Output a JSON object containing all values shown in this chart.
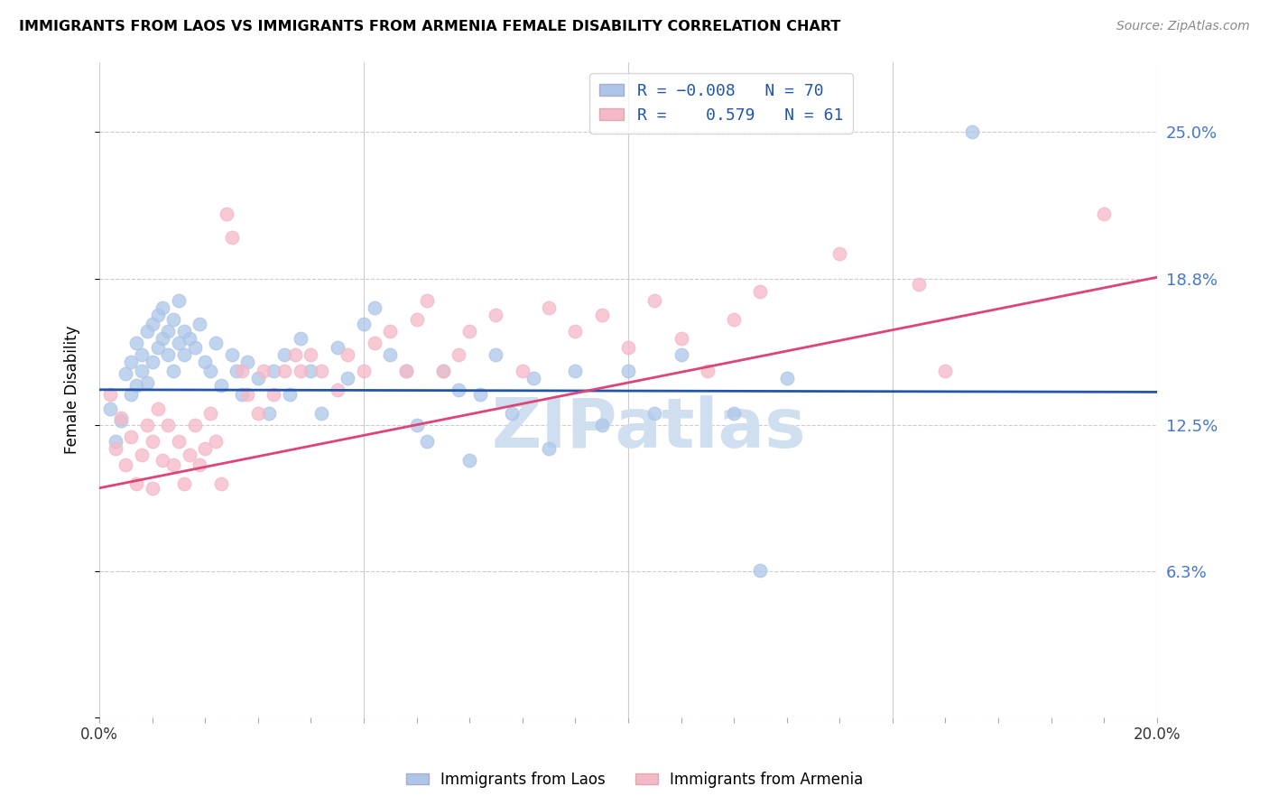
{
  "title": "IMMIGRANTS FROM LAOS VS IMMIGRANTS FROM ARMENIA FEMALE DISABILITY CORRELATION CHART",
  "source": "Source: ZipAtlas.com",
  "ylabel": "Female Disability",
  "x_min": 0.0,
  "x_max": 0.2,
  "y_min": 0.0,
  "y_max": 0.28,
  "ytick_vals": [
    0.0,
    0.0625,
    0.125,
    0.1875,
    0.25
  ],
  "ytick_labels": [
    "",
    "6.3%",
    "12.5%",
    "18.8%",
    "25.0%"
  ],
  "xtick_major": [
    0.0,
    0.05,
    0.1,
    0.15,
    0.2
  ],
  "xtick_minor": [
    0.01,
    0.02,
    0.03,
    0.04,
    0.06,
    0.07,
    0.08,
    0.09,
    0.11,
    0.12,
    0.13,
    0.14,
    0.16,
    0.17,
    0.18,
    0.19
  ],
  "xtick_labels": [
    "0.0%",
    "",
    "",
    "",
    "20.0%"
  ],
  "blue_fill": "#adc6e8",
  "blue_edge": "#6699cc",
  "pink_fill": "#f4b8c8",
  "pink_edge": "#e07090",
  "blue_line_color": "#2255aa",
  "pink_line_color": "#dd4477",
  "right_axis_color": "#4477cc",
  "watermark": "ZIPatlas",
  "laos_line_y0": 0.14,
  "laos_line_y1": 0.139,
  "armenia_line_y0": 0.098,
  "armenia_line_y1": 0.188,
  "laos_points": [
    [
      0.002,
      0.132
    ],
    [
      0.003,
      0.118
    ],
    [
      0.004,
      0.127
    ],
    [
      0.005,
      0.147
    ],
    [
      0.006,
      0.138
    ],
    [
      0.006,
      0.152
    ],
    [
      0.007,
      0.16
    ],
    [
      0.007,
      0.142
    ],
    [
      0.008,
      0.148
    ],
    [
      0.008,
      0.155
    ],
    [
      0.009,
      0.143
    ],
    [
      0.009,
      0.165
    ],
    [
      0.01,
      0.152
    ],
    [
      0.01,
      0.168
    ],
    [
      0.011,
      0.158
    ],
    [
      0.011,
      0.172
    ],
    [
      0.012,
      0.162
    ],
    [
      0.012,
      0.175
    ],
    [
      0.013,
      0.155
    ],
    [
      0.013,
      0.165
    ],
    [
      0.014,
      0.148
    ],
    [
      0.014,
      0.17
    ],
    [
      0.015,
      0.16
    ],
    [
      0.015,
      0.178
    ],
    [
      0.016,
      0.165
    ],
    [
      0.016,
      0.155
    ],
    [
      0.017,
      0.162
    ],
    [
      0.018,
      0.158
    ],
    [
      0.019,
      0.168
    ],
    [
      0.02,
      0.152
    ],
    [
      0.021,
      0.148
    ],
    [
      0.022,
      0.16
    ],
    [
      0.023,
      0.142
    ],
    [
      0.025,
      0.155
    ],
    [
      0.026,
      0.148
    ],
    [
      0.027,
      0.138
    ],
    [
      0.028,
      0.152
    ],
    [
      0.03,
      0.145
    ],
    [
      0.032,
      0.13
    ],
    [
      0.033,
      0.148
    ],
    [
      0.035,
      0.155
    ],
    [
      0.036,
      0.138
    ],
    [
      0.038,
      0.162
    ],
    [
      0.04,
      0.148
    ],
    [
      0.042,
      0.13
    ],
    [
      0.045,
      0.158
    ],
    [
      0.047,
      0.145
    ],
    [
      0.05,
      0.168
    ],
    [
      0.052,
      0.175
    ],
    [
      0.055,
      0.155
    ],
    [
      0.058,
      0.148
    ],
    [
      0.06,
      0.125
    ],
    [
      0.062,
      0.118
    ],
    [
      0.065,
      0.148
    ],
    [
      0.068,
      0.14
    ],
    [
      0.07,
      0.11
    ],
    [
      0.072,
      0.138
    ],
    [
      0.075,
      0.155
    ],
    [
      0.078,
      0.13
    ],
    [
      0.082,
      0.145
    ],
    [
      0.085,
      0.115
    ],
    [
      0.09,
      0.148
    ],
    [
      0.095,
      0.125
    ],
    [
      0.1,
      0.148
    ],
    [
      0.105,
      0.13
    ],
    [
      0.11,
      0.155
    ],
    [
      0.12,
      0.13
    ],
    [
      0.125,
      0.063
    ],
    [
      0.13,
      0.145
    ],
    [
      0.165,
      0.25
    ]
  ],
  "armenia_points": [
    [
      0.002,
      0.138
    ],
    [
      0.003,
      0.115
    ],
    [
      0.004,
      0.128
    ],
    [
      0.005,
      0.108
    ],
    [
      0.006,
      0.12
    ],
    [
      0.007,
      0.1
    ],
    [
      0.008,
      0.112
    ],
    [
      0.009,
      0.125
    ],
    [
      0.01,
      0.118
    ],
    [
      0.01,
      0.098
    ],
    [
      0.011,
      0.132
    ],
    [
      0.012,
      0.11
    ],
    [
      0.013,
      0.125
    ],
    [
      0.014,
      0.108
    ],
    [
      0.015,
      0.118
    ],
    [
      0.016,
      0.1
    ],
    [
      0.017,
      0.112
    ],
    [
      0.018,
      0.125
    ],
    [
      0.019,
      0.108
    ],
    [
      0.02,
      0.115
    ],
    [
      0.021,
      0.13
    ],
    [
      0.022,
      0.118
    ],
    [
      0.023,
      0.1
    ],
    [
      0.024,
      0.215
    ],
    [
      0.025,
      0.205
    ],
    [
      0.027,
      0.148
    ],
    [
      0.028,
      0.138
    ],
    [
      0.03,
      0.13
    ],
    [
      0.031,
      0.148
    ],
    [
      0.033,
      0.138
    ],
    [
      0.035,
      0.148
    ],
    [
      0.037,
      0.155
    ],
    [
      0.038,
      0.148
    ],
    [
      0.04,
      0.155
    ],
    [
      0.042,
      0.148
    ],
    [
      0.045,
      0.14
    ],
    [
      0.047,
      0.155
    ],
    [
      0.05,
      0.148
    ],
    [
      0.052,
      0.16
    ],
    [
      0.055,
      0.165
    ],
    [
      0.058,
      0.148
    ],
    [
      0.06,
      0.17
    ],
    [
      0.062,
      0.178
    ],
    [
      0.065,
      0.148
    ],
    [
      0.068,
      0.155
    ],
    [
      0.07,
      0.165
    ],
    [
      0.075,
      0.172
    ],
    [
      0.08,
      0.148
    ],
    [
      0.085,
      0.175
    ],
    [
      0.09,
      0.165
    ],
    [
      0.095,
      0.172
    ],
    [
      0.1,
      0.158
    ],
    [
      0.105,
      0.178
    ],
    [
      0.11,
      0.162
    ],
    [
      0.115,
      0.148
    ],
    [
      0.12,
      0.17
    ],
    [
      0.125,
      0.182
    ],
    [
      0.14,
      0.198
    ],
    [
      0.155,
      0.185
    ],
    [
      0.16,
      0.148
    ],
    [
      0.19,
      0.215
    ]
  ]
}
